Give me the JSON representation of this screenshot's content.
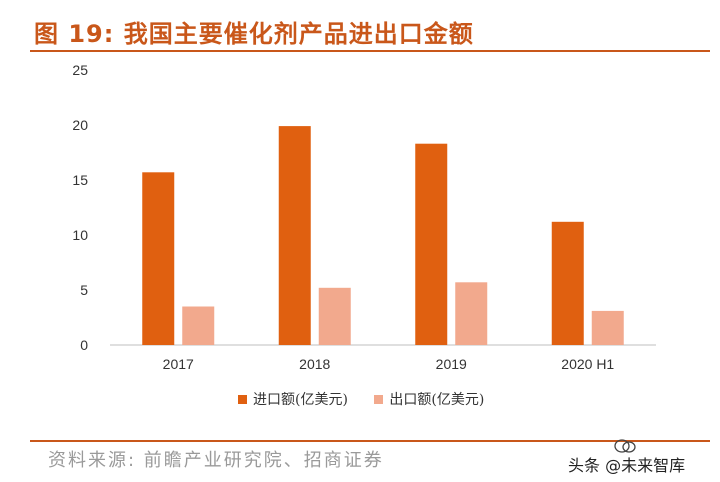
{
  "figure": {
    "title": "图 19:  我国主要催化剂产品进出口金额",
    "source": "资料来源: 前瞻产业研究院、招商证券",
    "watermark": "头条 @未来智库"
  },
  "colors": {
    "accent": "#C9571A",
    "import": "#E06010",
    "export": "#F2A98D"
  },
  "chart_data": {
    "type": "bar",
    "categories": [
      "2017",
      "2018",
      "2019",
      "2020 H1"
    ],
    "series": [
      {
        "name": "进口额(亿美元)",
        "values": [
          15.7,
          19.9,
          18.3,
          11.2
        ]
      },
      {
        "name": "出口额(亿美元)",
        "values": [
          3.5,
          5.2,
          5.7,
          3.1
        ]
      }
    ],
    "yticks": [
      "0",
      "5",
      "10",
      "15",
      "20",
      "25"
    ],
    "ylim": [
      0,
      25
    ],
    "grid": false,
    "legend": "bottom"
  }
}
